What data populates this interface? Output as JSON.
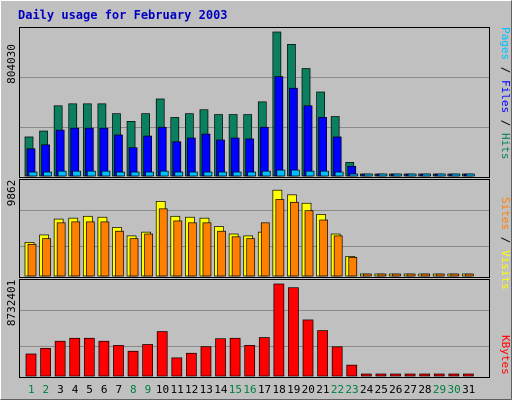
{
  "chart_data": [
    {
      "type": "bar",
      "title": "Daily usage for February 2003",
      "panel": "hits-files-pages",
      "ymax_label": "804030",
      "legend": [
        "Pages",
        "Files",
        "Hits"
      ],
      "x": [
        "1",
        "2",
        "3",
        "4",
        "5",
        "6",
        "7",
        "8",
        "9",
        "10",
        "11",
        "12",
        "13",
        "14",
        "15",
        "16",
        "17",
        "18",
        "19",
        "20",
        "21",
        "22",
        "23",
        "24",
        "25",
        "26",
        "27",
        "28",
        "29",
        "30",
        "31"
      ],
      "weekend_days": [
        "1",
        "2",
        "8",
        "9",
        "15",
        "16",
        "22",
        "23",
        "29",
        "30"
      ],
      "ylim": [
        0,
        804030
      ],
      "series": [
        {
          "name": "Hits",
          "values": [
            218000,
            251000,
            392000,
            403000,
            403000,
            403000,
            348000,
            305000,
            348000,
            430000,
            327000,
            348000,
            370000,
            343000,
            343000,
            343000,
            414000,
            804030,
            735000,
            600000,
            469000,
            332000,
            76000,
            0,
            0,
            0,
            0,
            0,
            0,
            0,
            0
          ]
        },
        {
          "name": "Files",
          "values": [
            152000,
            174000,
            256000,
            267000,
            267000,
            267000,
            229000,
            158000,
            223000,
            272000,
            191000,
            212000,
            234000,
            201000,
            212000,
            207000,
            272000,
            555000,
            490000,
            392000,
            327000,
            218000,
            54000,
            0,
            0,
            0,
            0,
            0,
            0,
            0,
            0
          ]
        },
        {
          "name": "Pages",
          "values": [
            22000,
            22000,
            27000,
            27000,
            27000,
            27000,
            22000,
            22000,
            22000,
            27000,
            22000,
            22000,
            22000,
            22000,
            22000,
            22000,
            27000,
            33000,
            33000,
            27000,
            27000,
            22000,
            11000,
            0,
            0,
            0,
            0,
            0,
            0,
            0,
            0
          ]
        }
      ]
    },
    {
      "type": "bar",
      "panel": "visits-sites",
      "ymax_label": "9862",
      "legend": [
        "Sites",
        "Visits"
      ],
      "x": [
        "1",
        "2",
        "3",
        "4",
        "5",
        "6",
        "7",
        "8",
        "9",
        "10",
        "11",
        "12",
        "13",
        "14",
        "15",
        "16",
        "17",
        "18",
        "19",
        "20",
        "21",
        "22",
        "23",
        "24",
        "25",
        "26",
        "27",
        "28",
        "29",
        "30",
        "31"
      ],
      "ylim": [
        0,
        9862
      ],
      "series": [
        {
          "name": "Visits",
          "values": [
            3600,
            4400,
            6100,
            6200,
            6400,
            6300,
            5200,
            4300,
            4700,
            8000,
            6400,
            6300,
            6200,
            5300,
            4500,
            4300,
            4700,
            9200,
            8700,
            7800,
            6600,
            4500,
            2100,
            0,
            0,
            0,
            0,
            0,
            0,
            0,
            0
          ]
        },
        {
          "name": "Sites",
          "values": [
            3400,
            4000,
            5700,
            5800,
            5800,
            5800,
            4800,
            4000,
            4500,
            7200,
            5900,
            5700,
            5700,
            4800,
            4200,
            4000,
            5700,
            8200,
            7900,
            7000,
            6000,
            4300,
            2000,
            0,
            0,
            0,
            0,
            0,
            0,
            0,
            0
          ]
        }
      ]
    },
    {
      "type": "bar",
      "panel": "kbytes",
      "ymax_label": "8732401",
      "legend": [
        "KBytes"
      ],
      "x": [
        "1",
        "2",
        "3",
        "4",
        "5",
        "6",
        "7",
        "8",
        "9",
        "10",
        "11",
        "12",
        "13",
        "14",
        "15",
        "16",
        "17",
        "18",
        "19",
        "20",
        "21",
        "22",
        "23",
        "24",
        "25",
        "26",
        "27",
        "28",
        "29",
        "30",
        "31"
      ],
      "ylim": [
        0,
        8732401
      ],
      "series": [
        {
          "name": "KBytes",
          "values": [
            2090000,
            2620000,
            3300000,
            3580000,
            3580000,
            3300000,
            2900000,
            2350000,
            2990000,
            4220000,
            1720000,
            2160000,
            2780000,
            3540000,
            3580000,
            2910000,
            3650000,
            8732401,
            8380000,
            5320000,
            4310000,
            2770000,
            1030000,
            0,
            0,
            0,
            0,
            0,
            0,
            0,
            0
          ]
        }
      ]
    }
  ],
  "colors": {
    "background": "#c0c0c0",
    "title": "#0000c0",
    "hits": "#0a8060",
    "files": "#0000ff",
    "pages": "#00c0ff",
    "visits": "#ffff00",
    "sites": "#ff8000",
    "kbytes": "#ff0000",
    "weekend_label": "#008040",
    "weekday_label": "#000000",
    "gridline": "#8a8a8a"
  }
}
